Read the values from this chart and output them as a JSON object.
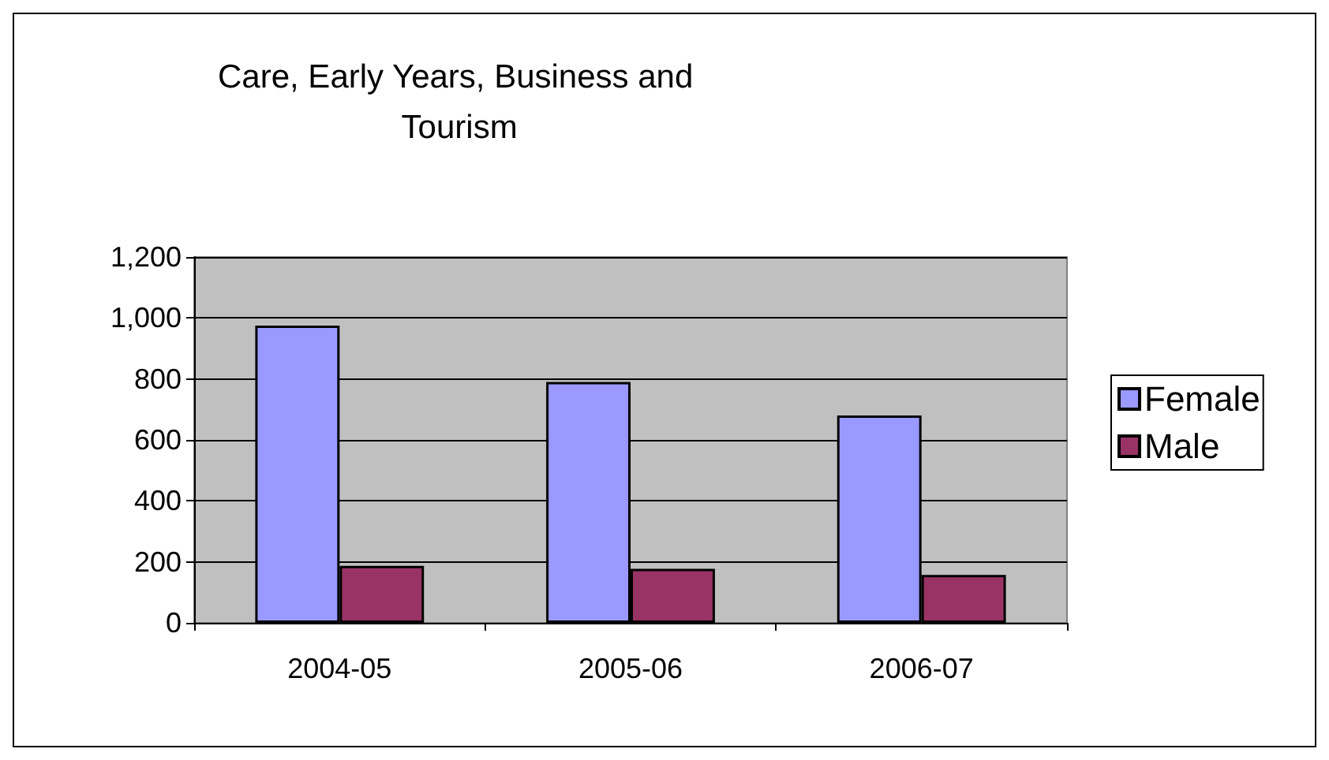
{
  "chart_data": {
    "type": "bar",
    "title": "Care, Early Years, Business and\n                    Tourism",
    "categories": [
      "2004-05",
      "2005-06",
      "2006-07"
    ],
    "series": [
      {
        "name": "Female",
        "color": "#9999ff",
        "values": [
          975,
          790,
          680
        ]
      },
      {
        "name": "Male",
        "color": "#993366",
        "values": [
          187,
          177,
          157
        ]
      }
    ],
    "ylim": [
      0,
      1200
    ],
    "yticks": [
      0,
      {
        "value": 200,
        "label": "200"
      },
      400,
      600,
      800,
      {
        "value": 1000,
        "label": "1,000"
      },
      {
        "value": 1200,
        "label": "1,200"
      }
    ],
    "grid": "y",
    "legend": "right"
  }
}
